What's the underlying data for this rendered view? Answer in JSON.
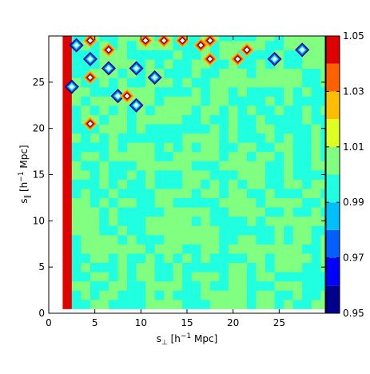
{
  "chart_data": {
    "type": "heatmap",
    "subtype": "filled-contour",
    "xlabel_parts": [
      "s",
      "⊥",
      " [h",
      "−1",
      " Mpc]"
    ],
    "ylabel_parts": [
      "s",
      "∥",
      " [h",
      "−1",
      " Mpc]"
    ],
    "xlim": [
      0,
      30
    ],
    "ylim": [
      0,
      30
    ],
    "x_ticks": [
      0,
      5,
      10,
      15,
      20,
      25
    ],
    "y_ticks": [
      0,
      5,
      10,
      15,
      20,
      25
    ],
    "colorbar": {
      "levels": [
        0.95,
        0.96,
        0.97,
        0.98,
        0.99,
        1.0,
        1.01,
        1.02,
        1.03,
        1.04,
        1.05
      ],
      "colors": [
        "#00008f",
        "#0000ff",
        "#0060ff",
        "#00bfff",
        "#20ffdf",
        "#80ff80",
        "#dfff20",
        "#ffbf00",
        "#ff6000",
        "#df0000",
        "#800000"
      ],
      "tick_values": [
        0.95,
        0.97,
        0.99,
        1.01,
        1.03,
        1.05
      ],
      "tick_labels": [
        "0.95",
        "0.97",
        "0.99",
        "1.01",
        "1.03",
        "1.05"
      ]
    },
    "background_value": 0.995,
    "field_description_values": {
      "dominant_levels": [
        0.99,
        1.0
      ],
      "min_shown": 0.95,
      "max_shown": 1.05
    },
    "features": [
      {
        "x": 2.0,
        "y": 0.5,
        "value": 1.05,
        "kind": "ridge"
      },
      {
        "x": 3.0,
        "y": 29.0,
        "value": 0.95,
        "kind": "peak"
      },
      {
        "x": 4.5,
        "y": 29.5,
        "value": 1.05,
        "kind": "peak"
      },
      {
        "x": 4.5,
        "y": 27.5,
        "value": 0.95,
        "kind": "peak"
      },
      {
        "x": 2.5,
        "y": 24.5,
        "value": 0.95,
        "kind": "peak"
      },
      {
        "x": 4.5,
        "y": 25.5,
        "value": 1.03,
        "kind": "peak"
      },
      {
        "x": 4.5,
        "y": 20.5,
        "value": 1.04,
        "kind": "peak"
      },
      {
        "x": 6.5,
        "y": 26.5,
        "value": 0.96,
        "kind": "peak"
      },
      {
        "x": 7.5,
        "y": 23.5,
        "value": 0.95,
        "kind": "peak"
      },
      {
        "x": 8.5,
        "y": 23.5,
        "value": 1.05,
        "kind": "peak"
      },
      {
        "x": 9.5,
        "y": 26.5,
        "value": 0.95,
        "kind": "peak"
      },
      {
        "x": 9.5,
        "y": 22.5,
        "value": 0.95,
        "kind": "peak"
      },
      {
        "x": 10.5,
        "y": 29.5,
        "value": 1.05,
        "kind": "peak"
      },
      {
        "x": 11.5,
        "y": 25.5,
        "value": 0.95,
        "kind": "peak"
      },
      {
        "x": 14.5,
        "y": 29.5,
        "value": 1.05,
        "kind": "peak"
      },
      {
        "x": 17.5,
        "y": 29.5,
        "value": 1.05,
        "kind": "peak"
      },
      {
        "x": 17.5,
        "y": 27.5,
        "value": 1.05,
        "kind": "peak"
      },
      {
        "x": 20.5,
        "y": 27.5,
        "value": 1.05,
        "kind": "peak"
      },
      {
        "x": 21.5,
        "y": 28.5,
        "value": 1.02,
        "kind": "peak"
      },
      {
        "x": 24.5,
        "y": 27.5,
        "value": 0.96,
        "kind": "peak"
      },
      {
        "x": 27.5,
        "y": 28.5,
        "value": 0.97,
        "kind": "peak"
      },
      {
        "x": 12.5,
        "y": 29.5,
        "value": 1.02,
        "kind": "peak"
      },
      {
        "x": 16.5,
        "y": 29.0,
        "value": 1.02,
        "kind": "peak"
      },
      {
        "x": 6.5,
        "y": 28.5,
        "value": 1.02,
        "kind": "peak"
      }
    ]
  }
}
